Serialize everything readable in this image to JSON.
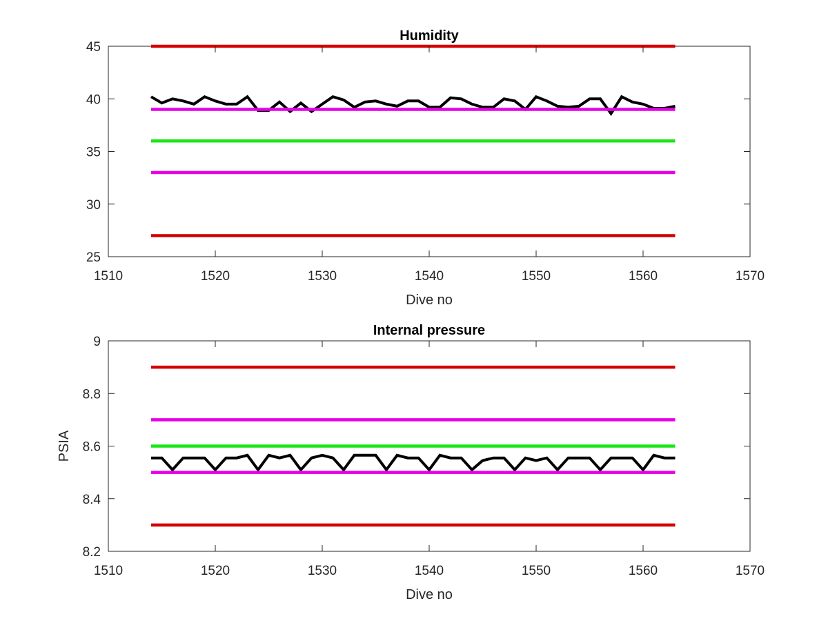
{
  "chart_data": [
    {
      "type": "line",
      "title": "Humidity",
      "xlabel": "Dive no",
      "ylabel": "",
      "xlim": [
        1510,
        1570
      ],
      "ylim": [
        25,
        45
      ],
      "xticks": [
        1510,
        1520,
        1530,
        1540,
        1550,
        1560,
        1570
      ],
      "yticks": [
        25,
        30,
        35,
        40,
        45
      ],
      "grid": false,
      "legend": "none",
      "series": [
        {
          "color": "#000000",
          "x": [
            1514,
            1515,
            1516,
            1517,
            1518,
            1519,
            1520,
            1521,
            1522,
            1523,
            1524,
            1525,
            1526,
            1527,
            1528,
            1529,
            1530,
            1531,
            1532,
            1533,
            1534,
            1535,
            1536,
            1537,
            1538,
            1539,
            1540,
            1541,
            1542,
            1543,
            1544,
            1545,
            1546,
            1547,
            1548,
            1549,
            1550,
            1551,
            1552,
            1553,
            1554,
            1555,
            1556,
            1557,
            1558,
            1559,
            1560,
            1561,
            1562,
            1563
          ],
          "y": [
            40.2,
            39.6,
            40.0,
            39.8,
            39.5,
            40.2,
            39.8,
            39.5,
            39.5,
            40.2,
            38.9,
            38.9,
            39.7,
            38.8,
            39.6,
            38.8,
            39.5,
            40.2,
            39.9,
            39.2,
            39.7,
            39.8,
            39.5,
            39.3,
            39.8,
            39.8,
            39.2,
            39.2,
            40.1,
            40.0,
            39.5,
            39.2,
            39.2,
            40.0,
            39.8,
            39.0,
            40.2,
            39.8,
            39.3,
            39.2,
            39.3,
            40.0,
            40.0,
            38.6,
            40.2,
            39.7,
            39.5,
            39.1,
            39.1,
            39.3
          ]
        },
        {
          "color": "#d40000",
          "x": [
            1514,
            1563
          ],
          "y": [
            45,
            45
          ]
        },
        {
          "color": "#e600e6",
          "x": [
            1514,
            1563
          ],
          "y": [
            39,
            39
          ]
        },
        {
          "color": "#19e619",
          "x": [
            1514,
            1563
          ],
          "y": [
            36,
            36
          ]
        },
        {
          "color": "#e600e6",
          "x": [
            1514,
            1563
          ],
          "y": [
            33,
            33
          ]
        },
        {
          "color": "#d40000",
          "x": [
            1514,
            1563
          ],
          "y": [
            27,
            27
          ]
        }
      ]
    },
    {
      "type": "line",
      "title": "Internal pressure",
      "xlabel": "Dive no",
      "ylabel": "PSIA",
      "xlim": [
        1510,
        1570
      ],
      "ylim": [
        8.2,
        9.0
      ],
      "xticks": [
        1510,
        1520,
        1530,
        1540,
        1550,
        1560,
        1570
      ],
      "yticks": [
        8.2,
        8.4,
        8.6,
        8.8,
        9
      ],
      "ytick_labels": [
        "8.2",
        "8.4",
        "8.6",
        "8.8",
        "9"
      ],
      "grid": false,
      "legend": "none",
      "series": [
        {
          "color": "#000000",
          "x": [
            1514,
            1515,
            1516,
            1517,
            1518,
            1519,
            1520,
            1521,
            1522,
            1523,
            1524,
            1525,
            1526,
            1527,
            1528,
            1529,
            1530,
            1531,
            1532,
            1533,
            1534,
            1535,
            1536,
            1537,
            1538,
            1539,
            1540,
            1541,
            1542,
            1543,
            1544,
            1545,
            1546,
            1547,
            1548,
            1549,
            1550,
            1551,
            1552,
            1553,
            1554,
            1555,
            1556,
            1557,
            1558,
            1559,
            1560,
            1561,
            1562,
            1563
          ],
          "y": [
            8.555,
            8.555,
            8.51,
            8.555,
            8.555,
            8.555,
            8.51,
            8.555,
            8.555,
            8.565,
            8.51,
            8.565,
            8.555,
            8.565,
            8.51,
            8.555,
            8.565,
            8.555,
            8.51,
            8.565,
            8.565,
            8.565,
            8.51,
            8.565,
            8.555,
            8.555,
            8.51,
            8.565,
            8.555,
            8.555,
            8.51,
            8.545,
            8.555,
            8.555,
            8.51,
            8.555,
            8.545,
            8.555,
            8.51,
            8.555,
            8.555,
            8.555,
            8.51,
            8.555,
            8.555,
            8.555,
            8.51,
            8.565,
            8.555,
            8.555
          ]
        },
        {
          "color": "#d40000",
          "x": [
            1514,
            1563
          ],
          "y": [
            8.9,
            8.9
          ]
        },
        {
          "color": "#e600e6",
          "x": [
            1514,
            1563
          ],
          "y": [
            8.7,
            8.7
          ]
        },
        {
          "color": "#19e619",
          "x": [
            1514,
            1563
          ],
          "y": [
            8.6,
            8.6
          ]
        },
        {
          "color": "#e600e6",
          "x": [
            1514,
            1563
          ],
          "y": [
            8.5,
            8.5
          ]
        },
        {
          "color": "#d40000",
          "x": [
            1514,
            1563
          ],
          "y": [
            8.3,
            8.3
          ]
        }
      ]
    }
  ]
}
